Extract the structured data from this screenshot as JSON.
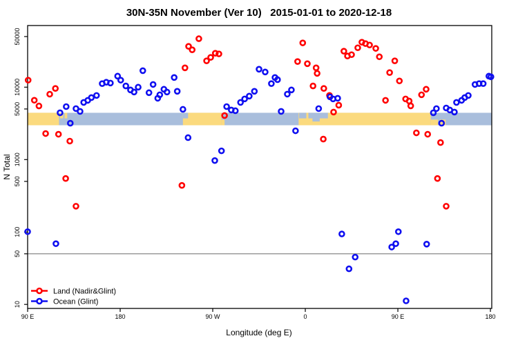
{
  "title": "30N-35N November (Ver 10)   2015-01-01 to 2020-12-18",
  "chart_data": {
    "type": "scatter",
    "title": "30N-35N November (Ver 10)   2015-01-01 to 2020-12-18",
    "xlabel": "Longitude (deg E)",
    "ylabel": "N Total",
    "x_axis": {
      "range": [
        90,
        541.3
      ],
      "ticks": [
        {
          "lon": 90,
          "label": "90 E"
        },
        {
          "lon": 180,
          "label": "180"
        },
        {
          "lon": 270,
          "label": "90 W"
        },
        {
          "lon": 360,
          "label": "0"
        },
        {
          "lon": 450,
          "label": "90 E"
        },
        {
          "lon": 540,
          "label": "180"
        }
      ]
    },
    "y_axis": {
      "scale": "log",
      "range": [
        8.8,
        71000
      ],
      "ticks": [
        50000,
        10000,
        5000,
        1000,
        500,
        100,
        50,
        10
      ],
      "tick_labels": [
        "50000",
        "10000",
        "5000",
        "1000",
        "500",
        "100",
        "50",
        "10"
      ]
    },
    "reference_line": {
      "value": 50,
      "color": "#7a7a7a"
    },
    "surface_band": {
      "n_range": [
        2980,
        4430
      ],
      "ocean_color": "#a9bedc",
      "land_color": "#fbda7e",
      "land_segments": [
        [
          90,
          120.5
        ],
        [
          241,
          278.5
        ],
        [
          353.5,
          482
        ]
      ],
      "patches": [
        {
          "type": "land",
          "range": [
            121.5,
            124.5
          ],
          "pos": "top"
        },
        {
          "type": "land",
          "range": [
            126,
            128.5
          ],
          "pos": "top"
        },
        {
          "type": "ocean",
          "range": [
            241,
            246
          ],
          "pos": "top"
        },
        {
          "type": "land",
          "range": [
            278.5,
            281.5
          ],
          "pos": "bottom"
        },
        {
          "type": "ocean",
          "range": [
            354,
            361
          ],
          "pos": "top"
        },
        {
          "type": "ocean",
          "range": [
            363,
            382
          ],
          "pos": "top"
        },
        {
          "type": "ocean",
          "range": [
            367,
            374
          ],
          "pos": "middle"
        },
        {
          "type": "land",
          "range": [
            482,
            489
          ],
          "pos": "bottom"
        },
        {
          "type": "land",
          "range": [
            491,
            496.5
          ],
          "pos": "bottom"
        }
      ]
    },
    "legend_position": "bottom-left",
    "series": [
      {
        "name": "Land (Nadir&Glint)",
        "color": "#ff0000",
        "points": [
          [
            90.5,
            12500
          ],
          [
            96.5,
            6600
          ],
          [
            101,
            5500
          ],
          [
            111.5,
            8000
          ],
          [
            117,
            9600
          ],
          [
            107.5,
            2290
          ],
          [
            120,
            2240
          ],
          [
            131,
            1800
          ],
          [
            127,
            548
          ],
          [
            137,
            227
          ],
          [
            243,
            18500
          ],
          [
            246.5,
            36600
          ],
          [
            250,
            32800
          ],
          [
            256.5,
            46700
          ],
          [
            264,
            23100
          ],
          [
            268,
            25800
          ],
          [
            272.5,
            29400
          ],
          [
            276,
            28800
          ],
          [
            281.5,
            4060
          ],
          [
            240,
            440
          ],
          [
            352.5,
            22600
          ],
          [
            357.5,
            40900
          ],
          [
            362,
            21100
          ],
          [
            367.5,
            10400
          ],
          [
            370.5,
            18500
          ],
          [
            371.5,
            15500
          ],
          [
            378,
            9600
          ],
          [
            383.5,
            7700
          ],
          [
            387.5,
            4530
          ],
          [
            392.5,
            5640
          ],
          [
            377.5,
            1920
          ],
          [
            397.5,
            31400
          ],
          [
            401,
            26900
          ],
          [
            405,
            28100
          ],
          [
            411,
            35000
          ],
          [
            415,
            41800
          ],
          [
            418.5,
            40000
          ],
          [
            422.5,
            38200
          ],
          [
            428.5,
            34300
          ],
          [
            432,
            26300
          ],
          [
            442,
            15900
          ],
          [
            447,
            23100
          ],
          [
            451.5,
            12200
          ],
          [
            438,
            6580
          ],
          [
            457.5,
            6880
          ],
          [
            461,
            6440
          ],
          [
            462.5,
            5520
          ],
          [
            473,
            7850
          ],
          [
            477.5,
            9360
          ],
          [
            468,
            2340
          ],
          [
            479,
            2240
          ],
          [
            491.5,
            1720
          ],
          [
            488.5,
            548
          ],
          [
            497,
            227
          ]
        ]
      },
      {
        "name": "Ocean (Glint)",
        "color": "#0f0ff0",
        "points": [
          [
            121.5,
            4430
          ],
          [
            127.5,
            5390
          ],
          [
            131.5,
            3180
          ],
          [
            137,
            5060
          ],
          [
            141,
            4630
          ],
          [
            144.5,
            6160
          ],
          [
            148.5,
            6580
          ],
          [
            152,
            7180
          ],
          [
            157,
            7680
          ],
          [
            162.5,
            11200
          ],
          [
            166.5,
            11700
          ],
          [
            170.5,
            11400
          ],
          [
            177.5,
            14200
          ],
          [
            180.5,
            12500
          ],
          [
            185.5,
            10400
          ],
          [
            190,
            9160
          ],
          [
            193.5,
            8570
          ],
          [
            197.5,
            10000
          ],
          [
            202,
            16900
          ],
          [
            208,
            8390
          ],
          [
            212,
            10900
          ],
          [
            216.5,
            7030
          ],
          [
            218.5,
            7850
          ],
          [
            222.5,
            9360
          ],
          [
            225.5,
            8570
          ],
          [
            232.5,
            13600
          ],
          [
            235.5,
            8770
          ],
          [
            241,
            4940
          ],
          [
            246,
            2010
          ],
          [
            272,
            970
          ],
          [
            278.5,
            1320
          ],
          [
            283.5,
            5390
          ],
          [
            288,
            4840
          ],
          [
            292,
            4730
          ],
          [
            297,
            6160
          ],
          [
            301,
            6880
          ],
          [
            305.5,
            7520
          ],
          [
            310.5,
            8770
          ],
          [
            315,
            17700
          ],
          [
            321,
            16200
          ],
          [
            327,
            11200
          ],
          [
            330.5,
            13600
          ],
          [
            333,
            12700
          ],
          [
            336.5,
            4630
          ],
          [
            342.5,
            8020
          ],
          [
            346.5,
            9160
          ],
          [
            350.5,
            2500
          ],
          [
            373,
            5060
          ],
          [
            384,
            7350
          ],
          [
            387,
            6880
          ],
          [
            391.5,
            7030
          ],
          [
            395.5,
            94
          ],
          [
            408.5,
            45
          ],
          [
            402.5,
            31
          ],
          [
            484.5,
            4430
          ],
          [
            487.5,
            5060
          ],
          [
            492.5,
            3180
          ],
          [
            497,
            5160
          ],
          [
            500.5,
            4840
          ],
          [
            505,
            4530
          ],
          [
            507,
            6160
          ],
          [
            512,
            6580
          ],
          [
            515,
            7180
          ],
          [
            518.5,
            7680
          ],
          [
            525,
            10900
          ],
          [
            529,
            11200
          ],
          [
            533,
            11200
          ],
          [
            538.5,
            14200
          ],
          [
            540.5,
            13900
          ],
          [
            90,
            101
          ],
          [
            117.5,
            69
          ],
          [
            450.5,
            101
          ],
          [
            448,
            69
          ],
          [
            444,
            62
          ],
          [
            478,
            68
          ],
          [
            458,
            11.2
          ]
        ]
      }
    ]
  }
}
